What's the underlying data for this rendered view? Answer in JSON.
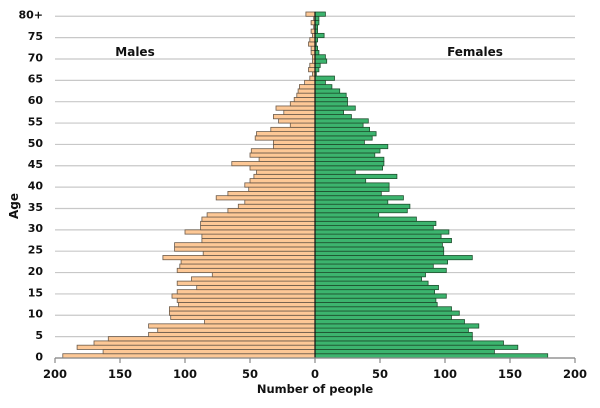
{
  "chart_data": {
    "type": "bar",
    "orientation": "horizontal-population-pyramid",
    "title": "",
    "xlabel": "Number of people",
    "ylabel": "Age",
    "xlim": [
      -200,
      200
    ],
    "x_ticks": [
      -200,
      -150,
      -100,
      -50,
      0,
      50,
      100,
      150,
      200
    ],
    "x_tick_labels": [
      "200",
      "150",
      "100",
      "50",
      "0",
      "50",
      "100",
      "150",
      "200"
    ],
    "y_ticks": [
      0,
      5,
      10,
      15,
      20,
      25,
      30,
      35,
      40,
      45,
      50,
      55,
      60,
      65,
      70,
      75,
      80
    ],
    "y_tick_labels": [
      "0",
      "5",
      "10",
      "15",
      "20",
      "25",
      "30",
      "35",
      "40",
      "45",
      "50",
      "55",
      "60",
      "65",
      "70",
      "75",
      "80+"
    ],
    "grid": "horizontal",
    "categories_note": "ages 0 to 80+",
    "series": [
      {
        "name": "Males",
        "side": "left",
        "color": "#fdc896",
        "values": [
          194,
          163,
          183,
          170,
          159,
          128,
          121,
          128,
          85,
          111,
          112,
          112,
          105,
          106,
          110,
          106,
          91,
          106,
          95,
          79,
          106,
          104,
          103,
          117,
          86,
          108,
          108,
          87,
          87,
          100,
          88,
          88,
          87,
          83,
          67,
          59,
          54,
          76,
          67,
          51,
          54,
          50,
          47,
          45,
          50,
          64,
          43,
          50,
          49,
          32,
          32,
          46,
          45,
          34,
          19,
          28,
          32,
          24,
          30,
          19,
          16,
          14,
          13,
          12,
          8,
          4,
          2,
          5,
          4,
          2,
          2,
          3,
          3,
          5,
          4,
          2,
          3,
          1,
          3,
          1,
          7
        ]
      },
      {
        "name": "Females",
        "side": "right",
        "color": "#3cb46e",
        "values": [
          179,
          138,
          156,
          145,
          121,
          121,
          118,
          126,
          115,
          105,
          111,
          105,
          94,
          93,
          101,
          92,
          95,
          87,
          82,
          85,
          101,
          91,
          102,
          121,
          99,
          99,
          98,
          105,
          97,
          103,
          91,
          93,
          78,
          49,
          71,
          73,
          56,
          68,
          51,
          57,
          57,
          39,
          63,
          31,
          52,
          53,
          53,
          46,
          50,
          56,
          38,
          44,
          47,
          42,
          37,
          41,
          28,
          22,
          31,
          25,
          25,
          24,
          19,
          13,
          8,
          15,
          1,
          3,
          4,
          9,
          8,
          3,
          2,
          1,
          2,
          7,
          2,
          2,
          3,
          3,
          8
        ]
      }
    ]
  }
}
